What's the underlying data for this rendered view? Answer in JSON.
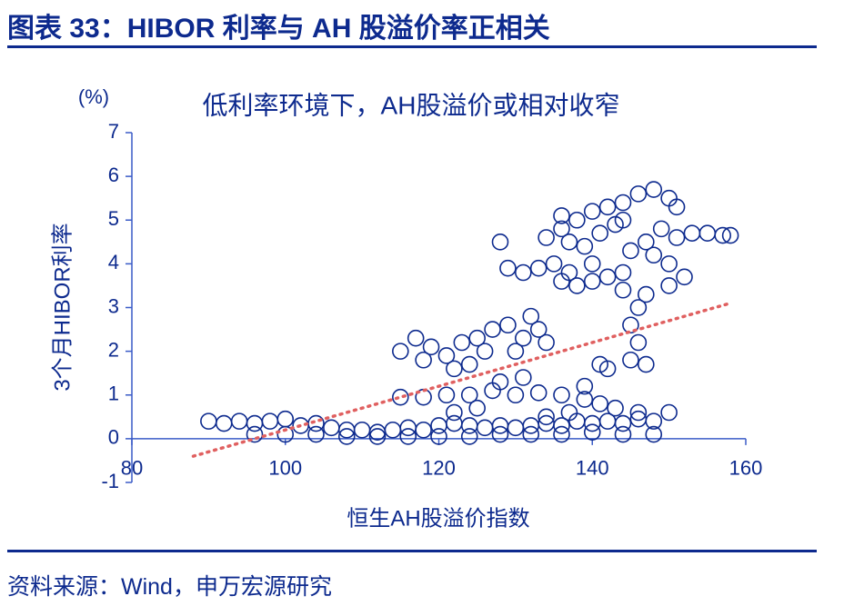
{
  "header": {
    "title": "图表 33：HIBOR 利率与 AH 股溢价率正相关"
  },
  "chart_data": {
    "type": "scatter",
    "title": "低利率环境下，AH股溢价或相对收窄",
    "x_label": "恒生AH股溢价指数",
    "y_label": "3个月HIBOR利率",
    "y_unit": "(%)",
    "xlim": [
      80,
      160
    ],
    "xticks": [
      80,
      100,
      120,
      140,
      160
    ],
    "ylim": [
      -1,
      7
    ],
    "yticks": [
      -1,
      0,
      1,
      2,
      3,
      4,
      5,
      6,
      7
    ],
    "color": "#0d2a8e",
    "x": [
      90,
      92,
      94,
      96,
      98,
      100,
      102,
      104,
      106,
      108,
      110,
      112,
      114,
      116,
      118,
      120,
      122,
      124,
      126,
      128,
      130,
      132,
      134,
      136,
      138,
      140,
      142,
      144,
      146,
      148,
      150,
      96,
      100,
      104,
      108,
      112,
      116,
      120,
      124,
      128,
      132,
      136,
      140,
      144,
      148,
      115,
      118,
      121,
      124,
      127,
      130,
      133,
      136,
      139,
      141,
      143,
      146,
      122,
      125,
      128,
      131,
      134,
      137,
      139,
      141,
      115,
      117,
      119,
      118,
      121,
      123,
      125,
      127,
      129,
      131,
      126,
      124,
      122,
      130,
      133,
      132,
      134,
      145,
      146,
      145,
      146,
      144,
      147,
      142,
      129,
      131,
      133,
      135,
      137,
      138,
      140,
      142,
      144,
      136,
      140,
      147,
      150,
      152,
      134,
      136,
      138,
      140,
      142,
      144,
      146,
      148,
      150,
      151,
      137,
      139,
      141,
      143,
      145,
      147,
      149,
      151,
      153,
      155,
      157,
      158,
      136,
      144,
      148,
      150,
      128
    ],
    "y": [
      0.4,
      0.35,
      0.4,
      0.35,
      0.4,
      0.45,
      0.3,
      0.35,
      0.25,
      0.2,
      0.2,
      0.15,
      0.2,
      0.25,
      0.2,
      0.3,
      0.35,
      0.3,
      0.25,
      0.3,
      0.25,
      0.3,
      0.35,
      0.3,
      0.4,
      0.35,
      0.4,
      0.35,
      0.45,
      0.4,
      0.6,
      0.1,
      0.1,
      0.1,
      0.05,
      0.05,
      0.05,
      0.05,
      0.05,
      0.1,
      0.1,
      0.1,
      0.15,
      0.1,
      0.1,
      0.95,
      0.95,
      1.0,
      1.0,
      1.1,
      1.0,
      1.05,
      1.0,
      0.9,
      0.8,
      0.7,
      0.6,
      0.6,
      0.7,
      1.3,
      1.4,
      0.5,
      0.6,
      1.2,
      1.7,
      2.0,
      2.3,
      2.1,
      1.8,
      1.9,
      2.2,
      2.3,
      2.5,
      2.6,
      2.3,
      2.0,
      1.7,
      1.6,
      2.0,
      2.5,
      2.8,
      2.2,
      1.8,
      2.2,
      2.6,
      3.0,
      3.4,
      1.7,
      1.6,
      3.9,
      3.8,
      3.9,
      4.0,
      3.8,
      3.5,
      3.6,
      3.7,
      3.8,
      3.6,
      4.0,
      3.3,
      3.5,
      3.7,
      4.6,
      4.8,
      5.0,
      5.2,
      5.3,
      5.4,
      5.6,
      5.7,
      5.5,
      5.3,
      4.5,
      4.4,
      4.7,
      4.9,
      4.3,
      4.5,
      4.8,
      4.6,
      4.7,
      4.7,
      4.65,
      4.65,
      5.1,
      5.0,
      4.2,
      4.0,
      4.5
    ],
    "trendline": {
      "color": "#e06060",
      "x": [
        88,
        158
      ],
      "y": [
        -0.4,
        3.1
      ]
    }
  },
  "footer": {
    "source": "资料来源：Wind，申万宏源研究"
  }
}
